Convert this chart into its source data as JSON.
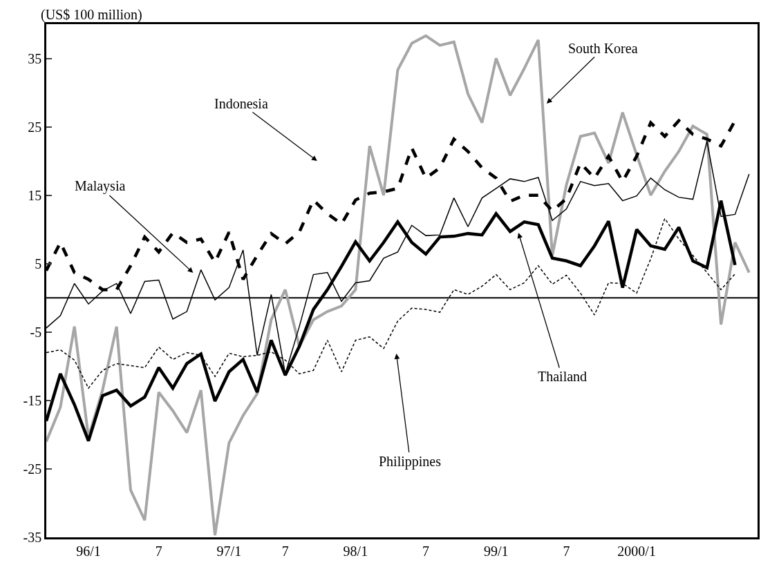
{
  "chart_data": {
    "type": "line",
    "ylabel": "(US$ 100 million)",
    "categories": [
      null,
      null,
      null,
      "96/1",
      null,
      null,
      null,
      null,
      "7",
      null,
      null,
      null,
      null,
      "97/1",
      null,
      null,
      null,
      "7",
      null,
      null,
      null,
      null,
      "98/1",
      null,
      null,
      null,
      null,
      "7",
      null,
      null,
      null,
      null,
      "99/1",
      null,
      null,
      null,
      null,
      "7",
      null,
      null,
      null,
      null,
      "2000/1",
      null,
      null,
      null,
      null,
      null,
      null,
      null,
      null
    ],
    "series": [
      {
        "color": "#a6a6a6",
        "line_style": "solid",
        "values": [
          -21,
          -16.0,
          -4.2,
          -20.4,
          -13.5,
          -4.2,
          -28.1,
          -32.5,
          -13.8,
          -16.5,
          -19.7,
          -13.5,
          -34.7,
          -21.2,
          -17.2,
          -14.0,
          -3.2,
          1.2,
          -7.1,
          -3.2,
          -2.0,
          -1.2,
          1.2,
          22.2,
          15.0,
          33.3,
          37.2,
          38.3,
          36.9,
          37.4,
          29.8,
          25.6,
          35.0,
          29.6,
          33.5,
          37.7,
          6.2,
          16.5,
          23.6,
          24.1,
          19.7,
          27.1,
          20.9,
          15.0,
          18.5,
          21.4,
          25.1,
          23.9,
          -3.9,
          8.1,
          3.7
        ]
      },
      {
        "color": "#000000",
        "line_style": "dashed",
        "values": [
          4.0,
          8.1,
          3.7,
          2.7,
          1.2,
          1.2,
          4.7,
          8.9,
          6.7,
          9.5,
          8.1,
          8.6,
          5.2,
          9.6,
          2.7,
          6.2,
          9.4,
          7.9,
          9.6,
          14.3,
          12.3,
          10.8,
          14.3,
          15.3,
          15.5,
          16.0,
          21.9,
          17.5,
          19.0,
          23.2,
          21.4,
          19.0,
          17.5,
          14.1,
          15.0,
          15.0,
          12.7,
          14.5,
          19.7,
          17.5,
          20.7,
          17.0,
          20.7,
          25.6,
          23.6,
          25.9,
          23.9,
          23.2,
          22.2,
          25.9,
          null
        ]
      },
      {
        "color": "#000000",
        "line_style": "solid",
        "values": [
          -4.4,
          -2.6,
          2.1,
          -0.9,
          1.0,
          2.1,
          -2.3,
          2.4,
          2.6,
          -3.1,
          -2.0,
          4.1,
          -0.3,
          1.5,
          7.0,
          -8.4,
          0.5,
          -11.1,
          -4.2,
          3.4,
          3.7,
          -0.5,
          2.2,
          2.5,
          5.8,
          6.7,
          10.6,
          9.1,
          9.2,
          14.6,
          10.4,
          14.6,
          16.0,
          17.4,
          17.0,
          17.6,
          11.3,
          13.0,
          17.0,
          16.4,
          16.7,
          14.2,
          14.9,
          17.5,
          15.8,
          14.7,
          14.4,
          22.9,
          11.9,
          12.2,
          18.1
        ]
      },
      {
        "color": "#000000",
        "line_style": "solid",
        "values": [
          -18,
          -11.1,
          -15.6,
          -20.9,
          -14.3,
          -13.5,
          -15.8,
          -14.5,
          -10.2,
          -13.2,
          -9.6,
          -8.2,
          -15.1,
          -10.8,
          -9.0,
          -13.8,
          -6.2,
          -11.3,
          -7.1,
          -1.7,
          1.2,
          4.6,
          8.2,
          5.4,
          8.1,
          11.1,
          8.1,
          6.4,
          8.9,
          9.0,
          9.4,
          9.2,
          12.3,
          9.7,
          11.1,
          10.7,
          5.8,
          5.4,
          4.7,
          7.6,
          11.2,
          1.5,
          10.0,
          7.6,
          7.1,
          10.3,
          5.4,
          4.4,
          14.2,
          4.8,
          null
        ]
      },
      {
        "color": "#000000",
        "line_style": "dotted",
        "values": [
          -8,
          -7.6,
          -9.1,
          -13.2,
          -10.6,
          -9.6,
          -9.9,
          -10.2,
          -7.2,
          -9.0,
          -8.0,
          -8.4,
          -11.5,
          -8.1,
          -8.6,
          -8.4,
          -7.9,
          -9.1,
          -11.1,
          -10.6,
          -6.2,
          -10.8,
          -6.2,
          -5.7,
          -7.4,
          -3.4,
          -1.5,
          -1.7,
          -2.1,
          1.2,
          0.5,
          1.7,
          3.4,
          1.2,
          2.2,
          4.7,
          2.0,
          3.3,
          0.7,
          -2.5,
          2.2,
          2.1,
          0.7,
          5.7,
          11.6,
          8.6,
          6.2,
          3.7,
          1.2,
          3.5,
          null
        ]
      }
    ],
    "annotations": [
      "South Korea",
      "Indonesia",
      "Malaysia",
      "Thailand",
      "Philippines"
    ],
    "ylim": [
      -35,
      40
    ],
    "yticks": [
      -35,
      -25,
      -15,
      -5,
      5,
      15,
      25,
      35
    ],
    "ref_lines": [
      {
        "axis": "y",
        "value": 0,
        "color": "#000000"
      }
    ],
    "grid": false,
    "marker": "none"
  }
}
